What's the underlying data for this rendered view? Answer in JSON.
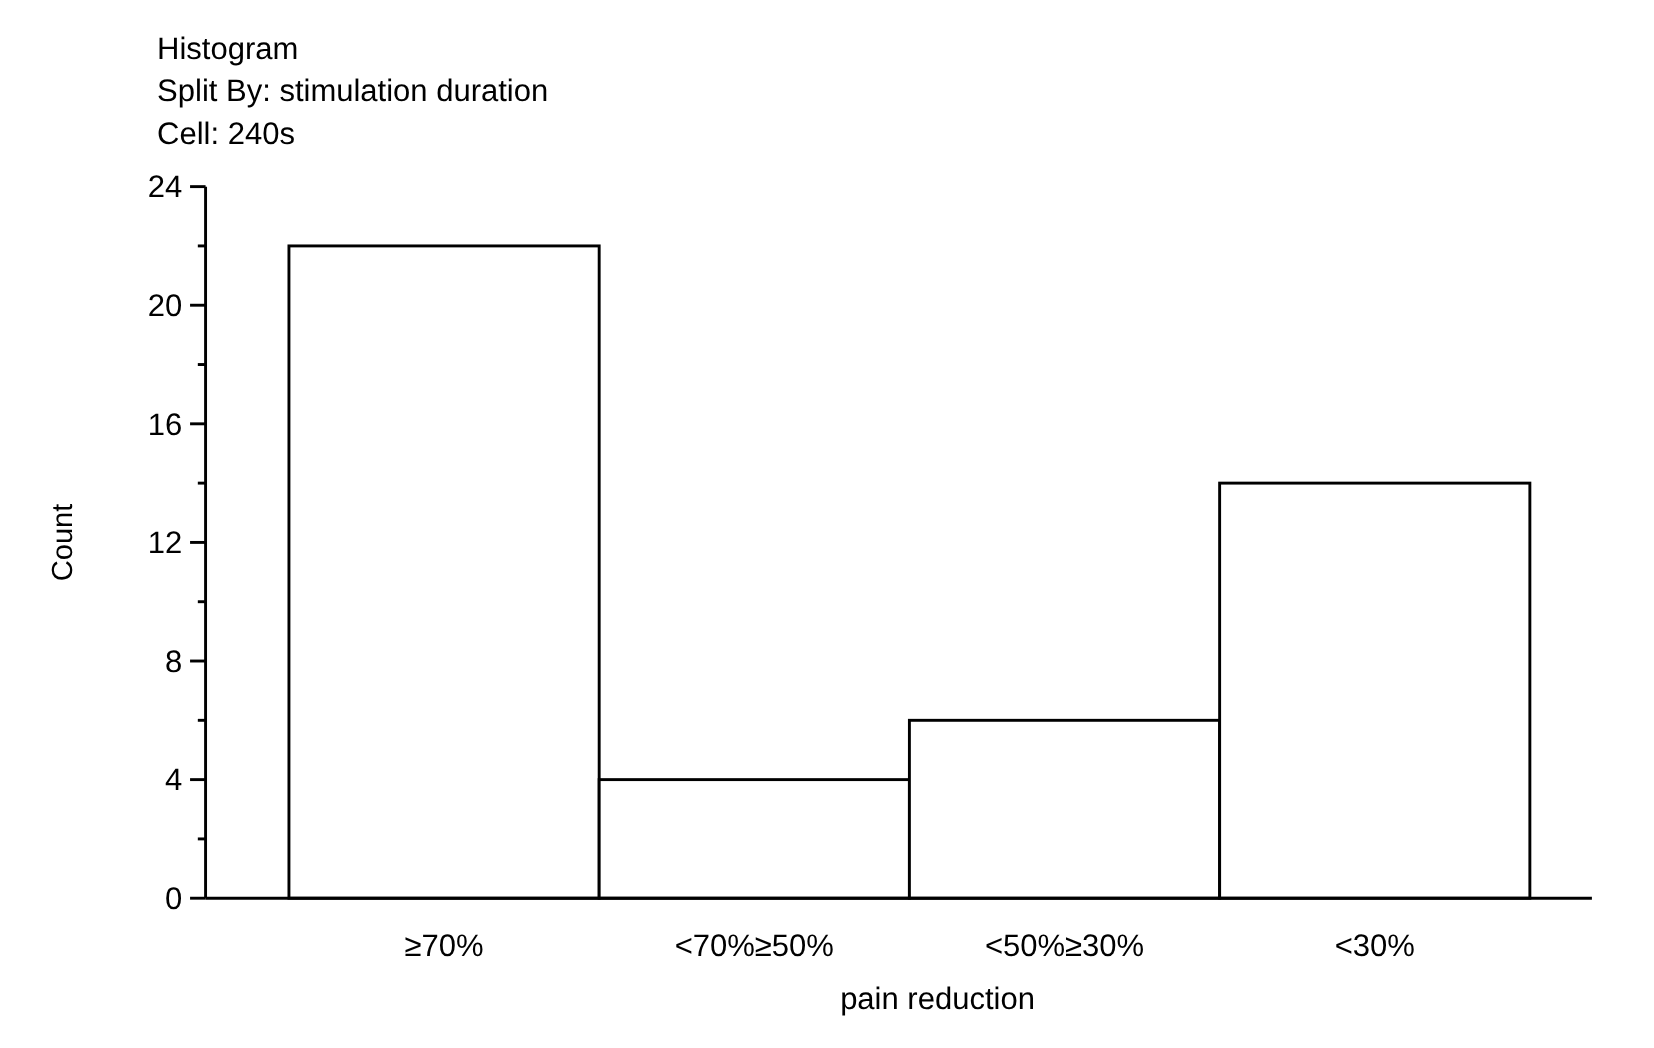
{
  "chart_data": {
    "type": "bar",
    "title": "Histogram",
    "subtitle": "Split By: stimulation duration",
    "annotations": [
      "Cell:  240s"
    ],
    "xlabel": "pain reduction",
    "ylabel": "Count",
    "categories": [
      "≥70%",
      "<70%≥50%",
      "<50%≥30%",
      "<30%"
    ],
    "values": [
      22,
      4,
      6,
      14
    ],
    "color": "#ffffff",
    "ylim": [
      0,
      24
    ],
    "yticks": [
      0,
      {
        "value": 2,
        "label": null
      },
      4,
      {
        "value": 6,
        "label": null
      },
      8,
      {
        "value": 10,
        "label": null
      },
      12,
      {
        "value": 14,
        "label": null
      },
      16,
      {
        "value": 18,
        "label": null
      },
      20,
      {
        "value": 22,
        "label": null
      },
      24
    ],
    "grid": false
  }
}
